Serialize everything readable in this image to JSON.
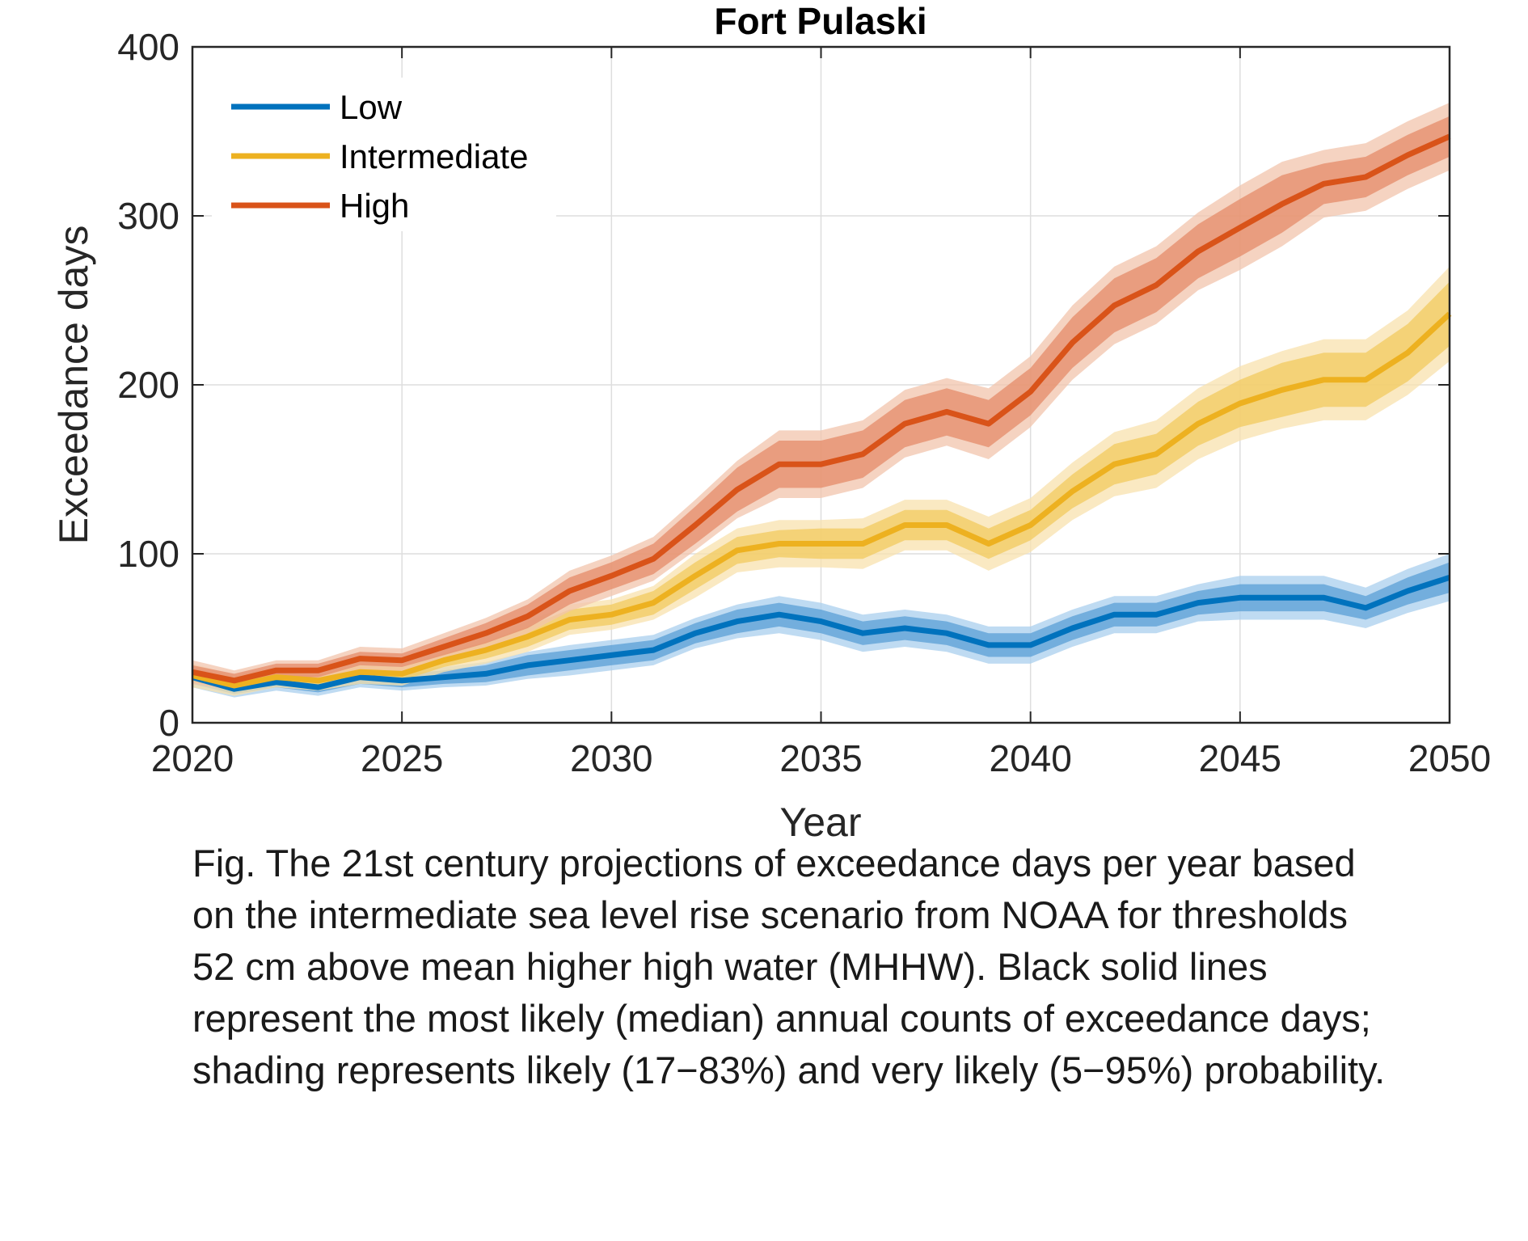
{
  "chart_data": {
    "type": "line",
    "title": "Fort Pulaski",
    "xlabel": "Year",
    "ylabel": "Exceedance days",
    "xlim": [
      2020,
      2050
    ],
    "ylim": [
      0,
      400
    ],
    "xticks": [
      2020,
      2025,
      2030,
      2035,
      2040,
      2045,
      2050
    ],
    "yticks": [
      0,
      100,
      200,
      300,
      400
    ],
    "grid": true,
    "legend_position": "top-left",
    "x": [
      2020,
      2021,
      2022,
      2023,
      2024,
      2025,
      2026,
      2027,
      2028,
      2029,
      2030,
      2031,
      2032,
      2033,
      2034,
      2035,
      2036,
      2037,
      2038,
      2039,
      2040,
      2041,
      2042,
      2043,
      2044,
      2045,
      2046,
      2047,
      2048,
      2049,
      2050
    ],
    "series": [
      {
        "name": "Low",
        "color": "#0072BD",
        "band_light": "#a9cfee",
        "band_dark": "#5a9fd6",
        "median": [
          27,
          20,
          24,
          21,
          27,
          25,
          27,
          29,
          34,
          37,
          40,
          43,
          53,
          60,
          64,
          60,
          53,
          56,
          53,
          46,
          46,
          56,
          64,
          64,
          71,
          74,
          74,
          74,
          68,
          78,
          86
        ],
        "likely_spread": [
          4,
          3,
          3,
          3,
          4,
          4,
          4,
          5,
          6,
          6,
          6,
          6,
          6,
          7,
          7,
          7,
          7,
          7,
          7,
          7,
          7,
          7,
          7,
          7,
          7,
          8,
          8,
          8,
          7,
          8,
          9
        ],
        "very_likely_spread": [
          6,
          5,
          5,
          5,
          6,
          6,
          6,
          7,
          8,
          9,
          9,
          9,
          9,
          10,
          11,
          11,
          11,
          11,
          11,
          11,
          11,
          11,
          11,
          11,
          11,
          13,
          13,
          13,
          12,
          13,
          14
        ]
      },
      {
        "name": "Intermediate",
        "color": "#EDB120",
        "band_light": "#f8e2ad",
        "band_dark": "#f1c95e",
        "median": [
          28,
          22,
          27,
          25,
          30,
          29,
          37,
          43,
          51,
          61,
          64,
          71,
          87,
          102,
          106,
          106,
          106,
          117,
          117,
          106,
          117,
          137,
          153,
          159,
          177,
          189,
          197,
          203,
          203,
          219,
          242
        ],
        "likely_spread": [
          4,
          3,
          3,
          3,
          4,
          4,
          4,
          5,
          6,
          6,
          6,
          7,
          8,
          8,
          8,
          9,
          9,
          9,
          9,
          9,
          9,
          10,
          12,
          12,
          13,
          14,
          16,
          16,
          16,
          17,
          19
        ],
        "very_likely_spread": [
          7,
          6,
          6,
          6,
          7,
          7,
          7,
          8,
          9,
          9,
          9,
          10,
          13,
          13,
          14,
          14,
          15,
          15,
          15,
          16,
          16,
          17,
          19,
          20,
          21,
          22,
          23,
          24,
          24,
          25,
          28
        ]
      },
      {
        "name": "High",
        "color": "#D95319",
        "band_light": "#f2c4ac",
        "band_dark": "#e48b68",
        "median": [
          30,
          25,
          31,
          31,
          38,
          37,
          45,
          53,
          63,
          78,
          87,
          97,
          117,
          138,
          153,
          153,
          159,
          177,
          184,
          177,
          196,
          225,
          247,
          259,
          279,
          293,
          307,
          319,
          323,
          336,
          347
        ],
        "likely_spread": [
          4,
          4,
          4,
          4,
          4,
          4,
          5,
          6,
          7,
          8,
          8,
          9,
          11,
          13,
          14,
          14,
          14,
          14,
          14,
          14,
          14,
          15,
          16,
          16,
          16,
          17,
          17,
          12,
          12,
          12,
          12
        ],
        "very_likely_spread": [
          7,
          6,
          6,
          6,
          7,
          7,
          8,
          9,
          10,
          12,
          12,
          13,
          15,
          17,
          20,
          20,
          20,
          20,
          20,
          21,
          21,
          22,
          23,
          23,
          23,
          25,
          25,
          20,
          20,
          20,
          20
        ]
      }
    ]
  },
  "caption": {
    "lines": [
      "Fig. The 21st century projections of exceedance days per year based",
      "on the intermediate sea level rise scenario from NOAA for thresholds",
      "52 cm above mean higher high water (MHHW). Black solid lines",
      "represent the most likely (median) annual counts of exceedance days;",
      "shading represents likely (17−83%) and very likely (5−95%) probability."
    ]
  }
}
